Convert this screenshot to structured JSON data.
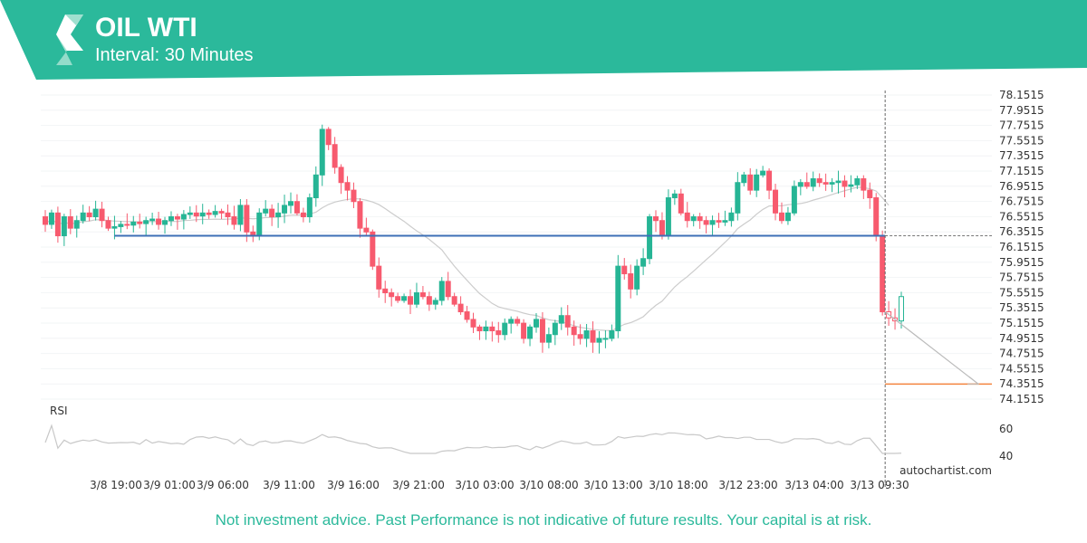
{
  "header": {
    "title": "OIL WTI",
    "subtitle": "Interval: 30 Minutes",
    "brand_color": "#2bb99b"
  },
  "footer": {
    "disclaimer": "Not investment advice. Past Performance is not indicative of future results. Your capital is at risk."
  },
  "watermark": "autochartist.com",
  "chart_data": {
    "type": "candlestick",
    "instrument": "OIL WTI",
    "ylim": [
      74.0,
      78.2
    ],
    "y_ticks": [
      "78.1515",
      "77.9515",
      "77.7515",
      "77.5515",
      "77.3515",
      "77.1515",
      "76.9515",
      "76.7515",
      "76.5515",
      "76.3515",
      "76.1515",
      "75.9515",
      "75.7515",
      "75.5515",
      "75.3515",
      "75.1515",
      "74.9515",
      "74.7515",
      "74.5515",
      "74.3515",
      "74.1515"
    ],
    "x_ticks": [
      "3/8 19:00",
      "3/9 01:00",
      "3/9 06:00",
      "3/9 11:00",
      "3/9 16:00",
      "3/9 21:00",
      "3/10 03:00",
      "3/10 08:00",
      "3/10 13:00",
      "3/10 18:00",
      "3/12 23:00",
      "3/13 04:00",
      "3/13 09:30"
    ],
    "closes": [
      76.45,
      76.6,
      76.3,
      76.55,
      76.4,
      76.5,
      76.6,
      76.55,
      76.65,
      76.5,
      76.4,
      76.42,
      76.45,
      76.44,
      76.48,
      76.46,
      76.5,
      76.52,
      76.45,
      76.5,
      76.55,
      76.52,
      76.58,
      76.6,
      76.56,
      76.6,
      76.58,
      76.62,
      76.6,
      76.55,
      76.45,
      76.7,
      76.35,
      76.3,
      76.6,
      76.65,
      76.55,
      76.6,
      76.7,
      76.75,
      76.6,
      76.55,
      76.8,
      77.1,
      77.7,
      77.5,
      77.2,
      77.0,
      76.9,
      76.75,
      76.4,
      76.35,
      75.9,
      75.6,
      75.55,
      75.5,
      75.45,
      75.5,
      75.4,
      75.55,
      75.5,
      75.4,
      75.45,
      75.7,
      75.5,
      75.4,
      75.3,
      75.2,
      75.1,
      75.05,
      75.1,
      75.05,
      75.0,
      75.15,
      75.2,
      75.15,
      74.95,
      75.1,
      75.2,
      74.9,
      75.0,
      75.15,
      75.25,
      75.1,
      75.0,
      74.95,
      75.05,
      74.9,
      74.95,
      74.95,
      75.05,
      75.9,
      75.8,
      75.6,
      75.9,
      76.0,
      76.55,
      76.5,
      76.3,
      76.8,
      76.85,
      76.6,
      76.5,
      76.55,
      76.5,
      76.45,
      76.5,
      76.48,
      76.5,
      76.6,
      77.0,
      77.1,
      76.9,
      77.1,
      77.15,
      76.9,
      76.6,
      76.5,
      76.6,
      76.95,
      77.0,
      76.95,
      77.05,
      77.0,
      76.98,
      77.0,
      77.02,
      76.95,
      76.97,
      77.05,
      76.9,
      76.8,
      76.3,
      75.3,
      75.22,
      75.18,
      75.5
    ],
    "support_resistance_level": 76.3,
    "target_level": 74.35,
    "forecast_start_label": "3/13 09:30",
    "rsi": {
      "label": "RSI",
      "ticks": [
        "60",
        "40"
      ],
      "ylim": [
        30,
        70
      ]
    },
    "colors": {
      "up": "#26b595",
      "down": "#f75a6e",
      "level": "#3d6fb6",
      "target": "#f4843f",
      "ma": "#cccccc"
    }
  }
}
